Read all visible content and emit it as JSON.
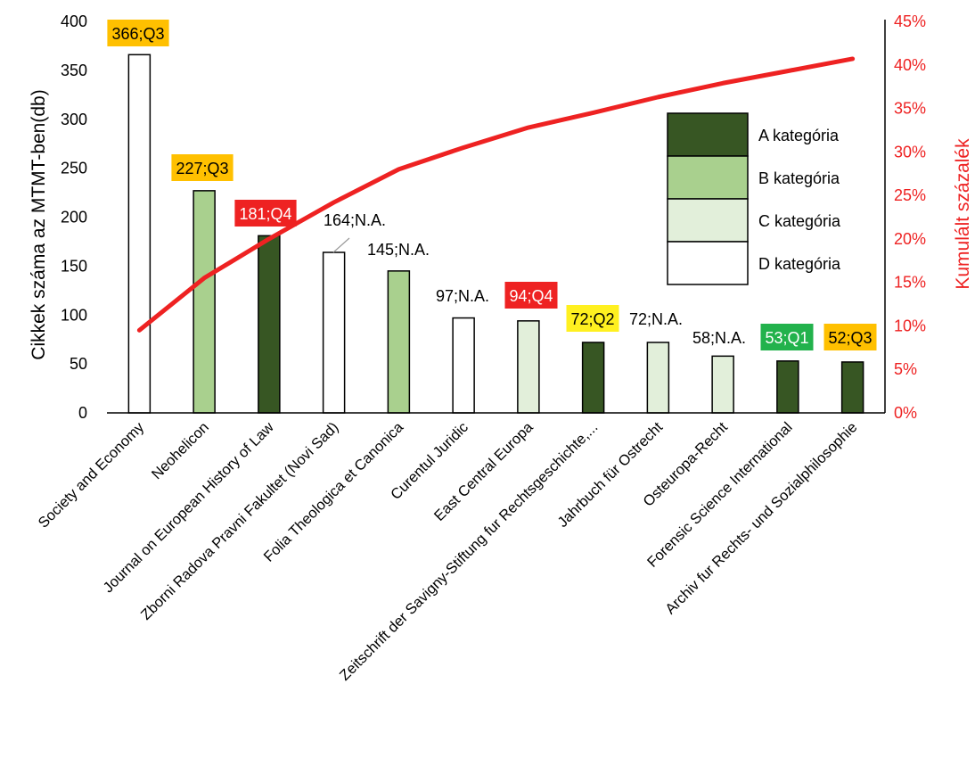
{
  "chart_data": {
    "type": "bar",
    "categories": [
      "Society and Economy",
      "Neohelicon",
      "Journal on European History of Law",
      "Zborni Radova Pravni Fakultet (Novi Sad)",
      "Folia Theologica et Canonica",
      "Curentul Juridic",
      "East Central Europa",
      "Zeitschrift der Savigny-Stiftung fur Rechtsgeschichte,...",
      "Jahrbuch für Ostrecht",
      "Osteuropa-Recht",
      "Forensic Science International",
      "Archiv fur Rechts- und Sozialphilosophie"
    ],
    "values": [
      366,
      227,
      181,
      164,
      145,
      97,
      94,
      72,
      72,
      58,
      53,
      52
    ],
    "bar_categories": [
      "D",
      "B",
      "A",
      "D",
      "B",
      "D",
      "C",
      "A",
      "C",
      "C",
      "A",
      "A"
    ],
    "data_labels": [
      "366;Q3",
      "227;Q3",
      "181;Q4",
      "164;N.A.",
      "145;N.A.",
      "97;N.A.",
      "94;Q4",
      "72;Q2",
      "72;N.A.",
      "58;N.A.",
      "53;Q1",
      "52;Q3"
    ],
    "label_highlights": [
      "#FFC000",
      "#FFC000",
      "#EE2222",
      null,
      null,
      null,
      "#EE2222",
      "#FFF020",
      null,
      null,
      "#22B24C",
      "#FFC000"
    ],
    "cumulative_line": {
      "values": [
        9.5,
        15.5,
        20.0,
        24.2,
        28.0,
        30.5,
        32.8,
        34.5,
        36.3,
        37.9,
        39.3,
        40.7
      ],
      "color": "#EE2222"
    },
    "ylabel": "Cikkek száma az MTMT-ben(db)",
    "y2label": "Kumulált százalék",
    "ylim": [
      0,
      400
    ],
    "yticks": [
      "0",
      "50",
      "100",
      "150",
      "200",
      "250",
      "300",
      "350",
      "400"
    ],
    "y2lim": [
      0,
      45
    ],
    "y2ticks": [
      "0%",
      "5%",
      "10%",
      "15%",
      "20%",
      "25%",
      "30%",
      "35%",
      "40%",
      "45%"
    ],
    "legend": {
      "placement": "top-right",
      "entries": [
        {
          "key": "A",
          "label": "A kategória",
          "color": "#375623"
        },
        {
          "key": "B",
          "label": "B kategória",
          "color": "#A9D08E"
        },
        {
          "key": "C",
          "label": "C kategória",
          "color": "#E2EFDA"
        },
        {
          "key": "D",
          "label": "D kategória",
          "color": "#FFFFFF"
        }
      ]
    },
    "grid": false
  }
}
